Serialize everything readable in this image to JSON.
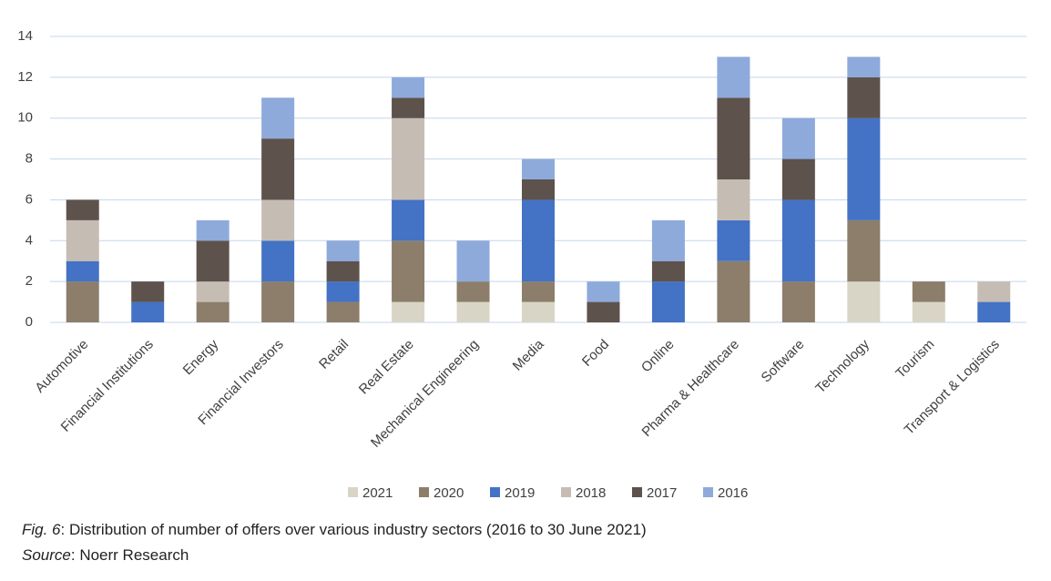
{
  "chart_data": {
    "type": "stacked-bar",
    "categories": [
      "Automotive",
      "Financial Institutions",
      "Energy",
      "Financial Investors",
      "Retail",
      "Real Estate",
      "Mechanical Engineering",
      "Media",
      "Food",
      "Online",
      "Pharma & Healthcare",
      "Software",
      "Technology",
      "Tourism",
      "Transport & Logistics"
    ],
    "series": [
      {
        "name": "2021",
        "color": "#d9d5c6",
        "values": [
          0,
          0,
          0,
          0,
          0,
          1,
          1,
          1,
          0,
          0,
          0,
          0,
          2,
          1,
          0
        ]
      },
      {
        "name": "2020",
        "color": "#8c7e6b",
        "values": [
          2,
          0,
          1,
          2,
          1,
          3,
          1,
          1,
          0,
          0,
          3,
          2,
          3,
          1,
          0
        ]
      },
      {
        "name": "2019",
        "color": "#4472c4",
        "values": [
          1,
          1,
          0,
          2,
          1,
          2,
          0,
          4,
          0,
          2,
          2,
          4,
          5,
          0,
          1
        ]
      },
      {
        "name": "2018",
        "color": "#c5bdb3",
        "values": [
          2,
          0,
          1,
          2,
          0,
          4,
          0,
          0,
          0,
          0,
          2,
          0,
          0,
          0,
          1
        ]
      },
      {
        "name": "2017",
        "color": "#5e524c",
        "values": [
          1,
          1,
          2,
          3,
          1,
          1,
          0,
          1,
          1,
          1,
          4,
          2,
          2,
          0,
          0
        ]
      },
      {
        "name": "2016",
        "color": "#8eaadb",
        "values": [
          0,
          0,
          1,
          2,
          1,
          1,
          2,
          1,
          1,
          2,
          2,
          2,
          1,
          0,
          0
        ]
      }
    ],
    "ylim": [
      0,
      14
    ],
    "yticks": [
      0,
      2,
      4,
      6,
      8,
      10,
      12,
      14
    ],
    "grid": true,
    "legend": "bottom",
    "caption": {
      "label": "Fig. 6",
      "text": ": Distribution of number of offers over various industry sectors (2016 to 30 June 2021)"
    },
    "source": {
      "label": "Source",
      "text": ": Noerr Research"
    }
  }
}
